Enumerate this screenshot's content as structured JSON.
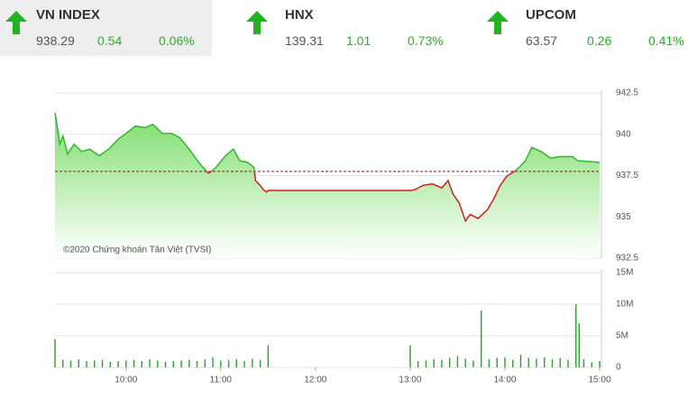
{
  "tickers": [
    {
      "name": "VN INDEX",
      "value": 938.29,
      "change": 0.54,
      "percent": "0.06%"
    },
    {
      "name": "HNX",
      "value": 139.31,
      "change": 1.01,
      "percent": "0.73%"
    },
    {
      "name": "UPCOM",
      "value": 63.57,
      "change": 0.26,
      "percent": "0.41%"
    }
  ],
  "chart_data": [
    {
      "type": "line",
      "annotation": "©2020 Chứng khoán Tân Việt (TVSI)",
      "x": [
        555,
        556,
        558,
        560,
        563,
        567,
        572,
        577,
        583,
        589,
        595,
        600,
        606,
        612,
        617,
        623,
        629,
        634,
        640,
        646,
        652,
        654,
        657,
        663,
        668,
        672,
        677,
        681,
        682,
        685,
        687,
        689,
        690,
        780,
        783,
        788,
        794,
        800,
        804,
        807,
        811,
        815,
        818,
        823,
        829,
        833,
        837,
        841,
        846,
        849,
        853,
        857,
        863,
        869,
        875,
        883,
        886,
        900
      ],
      "values": [
        941.3,
        940.75,
        939.4,
        939.9,
        938.8,
        939.4,
        938.95,
        939.1,
        938.7,
        939.1,
        939.7,
        940.05,
        940.5,
        940.4,
        940.6,
        940.05,
        940.05,
        939.8,
        939.1,
        938.3,
        937.65,
        937.75,
        938.0,
        938.7,
        939.1,
        938.4,
        938.3,
        938.0,
        937.2,
        936.9,
        936.65,
        936.5,
        936.6,
        936.6,
        936.65,
        936.9,
        937.0,
        936.75,
        937.2,
        936.4,
        935.85,
        934.75,
        935.15,
        934.9,
        935.45,
        936.1,
        936.9,
        937.45,
        937.75,
        938.0,
        938.4,
        939.2,
        938.95,
        938.55,
        938.65,
        938.65,
        938.4,
        938.3
      ],
      "reference": 937.75,
      "up_color": "#2eb82e",
      "down_color": "#d41c1c",
      "area_color": "#7edc6a",
      "reference_color": "#8b1a1a",
      "xlim": [
        555,
        900
      ],
      "ylim": [
        932.5,
        942.5
      ],
      "yticks": [
        932.5,
        935,
        937.5,
        940,
        942.5
      ],
      "grid": true
    },
    {
      "type": "bar",
      "color": "#2e9e2e",
      "x": [
        555,
        560,
        565,
        570,
        575,
        580,
        585,
        590,
        595,
        600,
        605,
        610,
        615,
        620,
        625,
        630,
        635,
        640,
        645,
        650,
        655,
        660,
        665,
        670,
        675,
        680,
        685,
        690,
        780,
        785,
        790,
        795,
        800,
        805,
        810,
        815,
        820,
        825,
        830,
        835,
        840,
        845,
        850,
        855,
        860,
        865,
        870,
        875,
        880,
        885,
        887,
        890,
        895,
        900
      ],
      "values": [
        4500000,
        1200000,
        1100000,
        1300000,
        1000000,
        1100000,
        1200000,
        900000,
        1000000,
        1100000,
        1200000,
        1000000,
        1300000,
        1100000,
        900000,
        1000000,
        1100000,
        1200000,
        1000000,
        1300000,
        1600000,
        1100000,
        1200000,
        1300000,
        1000000,
        1400000,
        1200000,
        3500000,
        3500000,
        1000000,
        1100000,
        1300000,
        1200000,
        1500000,
        1800000,
        1400000,
        1100000,
        9000000,
        1300000,
        1500000,
        1600000,
        1200000,
        2000000,
        1500000,
        1400000,
        1600000,
        1300000,
        1500000,
        1200000,
        10000000,
        7000000,
        1300000,
        800000,
        1000000
      ],
      "xlim": [
        555,
        900
      ],
      "ylim": [
        0,
        15000000
      ],
      "xticks": [
        {
          "value": 600,
          "label": "10:00"
        },
        {
          "value": 660,
          "label": "11:00"
        },
        {
          "value": 720,
          "label": "12:00"
        },
        {
          "value": 780,
          "label": "13:00"
        },
        {
          "value": 840,
          "label": "14:00"
        },
        {
          "value": 900,
          "label": "15:00"
        }
      ],
      "yticks": [
        {
          "value": 0,
          "label": "0"
        },
        {
          "value": 5000000,
          "label": "5M"
        },
        {
          "value": 10000000,
          "label": "10M"
        },
        {
          "value": 15000000,
          "label": "15M"
        }
      ],
      "grid": true
    }
  ]
}
